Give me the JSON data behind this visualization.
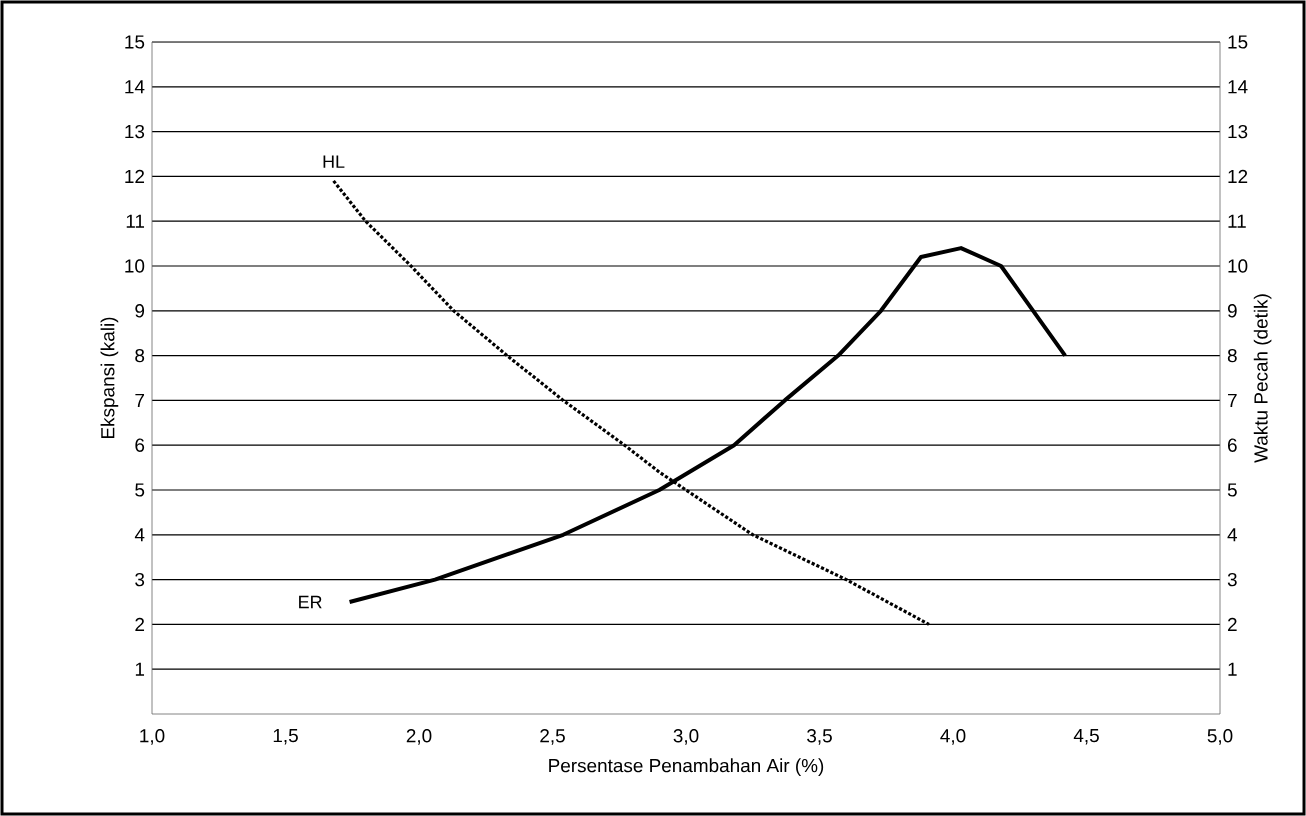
{
  "chart_data": {
    "type": "line",
    "xlabel": "Persentase Penambahan Air (%)",
    "ylabel": "Ekspansi (kali)",
    "y2label": "Waktu Pecah (detik)",
    "xlim": [
      1.0,
      5.0
    ],
    "xticks": [
      {
        "value": 1.0,
        "label": "1,0"
      },
      {
        "value": 1.5,
        "label": "1,5"
      },
      {
        "value": 2.0,
        "label": "2,0"
      },
      {
        "value": 2.5,
        "label": "2,5"
      },
      {
        "value": 3.0,
        "label": "3,0"
      },
      {
        "value": 3.5,
        "label": "3,5"
      },
      {
        "value": 4.0,
        "label": "4,0"
      },
      {
        "value": 4.5,
        "label": "4,5"
      },
      {
        "value": 5.0,
        "label": "5,0"
      }
    ],
    "ylim": [
      0,
      15
    ],
    "yticks": [
      1,
      2,
      3,
      4,
      5,
      6,
      7,
      8,
      9,
      10,
      11,
      12,
      13,
      14,
      15
    ],
    "y2lim": [
      0,
      15
    ],
    "y2ticks": [
      1,
      2,
      3,
      4,
      5,
      6,
      7,
      8,
      9,
      10,
      11,
      12,
      13,
      14,
      15
    ],
    "grid": "y",
    "legend": false,
    "marker": "none",
    "series": [
      {
        "name": "ER",
        "color": "#000000",
        "line_style": "solid",
        "x": [
          1.74,
          2.06,
          2.54,
          2.9,
          3.18,
          3.37,
          3.57,
          3.73,
          3.88,
          4.03,
          4.18,
          4.42
        ],
        "values": [
          2.5,
          3,
          4,
          5,
          6,
          7,
          8,
          9,
          10.2,
          10.4,
          10,
          8
        ]
      },
      {
        "name": "HL",
        "color": "#000000",
        "line_style": "dotted",
        "axis": "y2",
        "x": [
          1.68,
          1.8,
          1.97,
          2.13,
          2.33,
          2.54,
          2.77,
          2.9,
          3.25,
          3.6,
          3.91
        ],
        "values": [
          11.9,
          11,
          10,
          9,
          8,
          7,
          6,
          5.4,
          4,
          3,
          2
        ]
      }
    ]
  }
}
